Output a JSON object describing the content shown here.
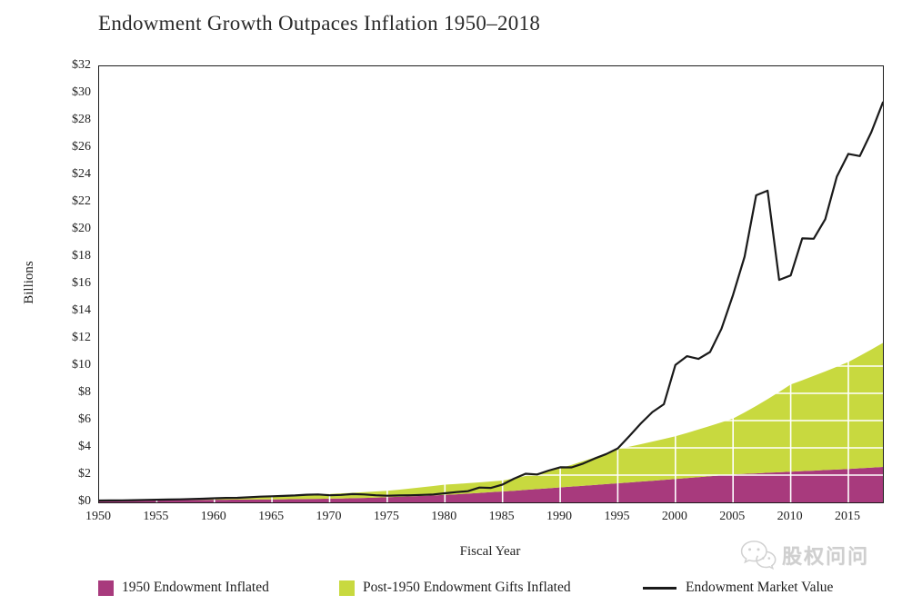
{
  "title": "Endowment Growth Outpaces Inflation 1950–2018",
  "y_axis": {
    "label": "Billions",
    "ticks": [
      "$32",
      "$30",
      "$28",
      "$26",
      "$24",
      "$22",
      "$20",
      "$18",
      "$16",
      "$14",
      "$12",
      "$10",
      "$8",
      "$6",
      "$4",
      "$2",
      "$0"
    ]
  },
  "x_axis": {
    "label": "Fiscal Year",
    "ticks": [
      "1950",
      "1955",
      "1960",
      "1965",
      "1970",
      "1975",
      "1980",
      "1985",
      "1990",
      "1995",
      "2000",
      "2005",
      "2010",
      "2015"
    ]
  },
  "legend": {
    "item1": "1950 Endowment Inflated",
    "item2": "Post-1950 Endowment Gifts Inflated",
    "item3": "Endowment Market Value"
  },
  "watermark": {
    "text": "股权问问",
    "icon": "wechat-logo-icon",
    "color": "#cdcdcd"
  },
  "colors": {
    "magenta_area": "#a83a7d",
    "green_area": "#c8d93f",
    "market_value_line": "#1a1a1a",
    "gridline": "#ffffff",
    "plot_border": "#1c1c1c"
  },
  "chart_data": {
    "type": "area",
    "title": "Endowment Growth Outpaces Inflation 1950–2018",
    "xlabel": "Fiscal Year",
    "ylabel": "Billions",
    "ylim": [
      0,
      32
    ],
    "y_tick_step": 2,
    "x_tick_step": 5,
    "grid": "white gridlines visible over filled areas only",
    "legend_position": "bottom",
    "units": "billions of dollars",
    "x": [
      1950,
      1951,
      1952,
      1953,
      1954,
      1955,
      1956,
      1957,
      1958,
      1959,
      1960,
      1961,
      1962,
      1963,
      1964,
      1965,
      1966,
      1967,
      1968,
      1969,
      1970,
      1971,
      1972,
      1973,
      1974,
      1975,
      1976,
      1977,
      1978,
      1979,
      1980,
      1981,
      1982,
      1983,
      1984,
      1985,
      1986,
      1987,
      1988,
      1989,
      1990,
      1991,
      1992,
      1993,
      1994,
      1995,
      1996,
      1997,
      1998,
      1999,
      2000,
      2001,
      2002,
      2003,
      2004,
      2005,
      2006,
      2007,
      2008,
      2009,
      2010,
      2011,
      2012,
      2013,
      2014,
      2015,
      2016,
      2017,
      2018
    ],
    "series": [
      {
        "name": "1950 Endowment Inflated",
        "type": "area-stacked",
        "color": "#a83a7d",
        "values": [
          0.134,
          0.139,
          0.144,
          0.149,
          0.154,
          0.16,
          0.166,
          0.172,
          0.178,
          0.184,
          0.19,
          0.196,
          0.202,
          0.208,
          0.214,
          0.22,
          0.229,
          0.238,
          0.248,
          0.259,
          0.27,
          0.288,
          0.308,
          0.33,
          0.354,
          0.38,
          0.408,
          0.44,
          0.474,
          0.51,
          0.55,
          0.594,
          0.64,
          0.69,
          0.744,
          0.8,
          0.855,
          0.912,
          0.972,
          1.035,
          1.1,
          1.157,
          1.215,
          1.275,
          1.337,
          1.4,
          1.462,
          1.525,
          1.589,
          1.654,
          1.72,
          1.785,
          1.85,
          1.916,
          1.983,
          2.05,
          2.09,
          2.13,
          2.17,
          2.21,
          2.25,
          2.29,
          2.33,
          2.37,
          2.41,
          2.45,
          2.5,
          2.55,
          2.6
        ]
      },
      {
        "name": "Post-1950 Endowment Gifts Inflated",
        "type": "area-stacked",
        "color": "#c8d93f",
        "values": [
          0.0,
          0.006,
          0.013,
          0.021,
          0.03,
          0.04,
          0.052,
          0.065,
          0.079,
          0.094,
          0.11,
          0.132,
          0.154,
          0.178,
          0.203,
          0.23,
          0.252,
          0.275,
          0.299,
          0.324,
          0.35,
          0.372,
          0.395,
          0.419,
          0.444,
          0.47,
          0.52,
          0.573,
          0.63,
          0.689,
          0.75,
          0.759,
          0.769,
          0.779,
          0.789,
          0.8,
          0.905,
          1.02,
          1.14,
          1.268,
          1.4,
          1.598,
          1.809,
          2.028,
          2.259,
          2.5,
          2.62,
          2.743,
          2.869,
          2.998,
          3.13,
          3.31,
          3.5,
          3.69,
          3.89,
          4.1,
          4.51,
          4.94,
          5.4,
          5.89,
          6.4,
          6.67,
          6.95,
          7.24,
          7.54,
          7.85,
          8.25,
          8.67,
          9.1
        ]
      },
      {
        "name": "Endowment Market Value",
        "type": "line",
        "color": "#1a1a1a",
        "values": [
          0.134,
          0.142,
          0.15,
          0.158,
          0.177,
          0.19,
          0.209,
          0.222,
          0.248,
          0.268,
          0.297,
          0.33,
          0.334,
          0.37,
          0.417,
          0.448,
          0.47,
          0.509,
          0.557,
          0.577,
          0.522,
          0.547,
          0.604,
          0.583,
          0.523,
          0.487,
          0.507,
          0.521,
          0.545,
          0.578,
          0.669,
          0.751,
          0.821,
          1.089,
          1.061,
          1.308,
          1.739,
          2.098,
          2.044,
          2.336,
          2.571,
          2.567,
          2.845,
          3.219,
          3.545,
          3.963,
          4.86,
          5.79,
          6.624,
          7.2,
          10.085,
          10.725,
          10.524,
          11.035,
          12.747,
          15.225,
          18.031,
          22.53,
          22.87,
          16.327,
          16.652,
          19.374,
          19.345,
          20.78,
          23.9,
          25.572,
          25.413,
          27.176,
          29.351
        ]
      }
    ]
  }
}
